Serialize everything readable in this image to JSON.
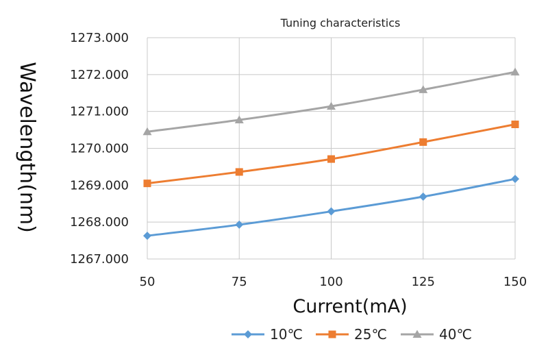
{
  "chart_data": {
    "type": "line",
    "title": "Tuning characteristics",
    "xlabel": "Current(mA)",
    "ylabel": "Wavelength(nm)",
    "x": [
      50,
      75,
      100,
      125,
      150
    ],
    "xticks": [
      "50",
      "75",
      "100",
      "125",
      "150"
    ],
    "xlim": [
      50,
      150
    ],
    "yticks": [
      "1267.000",
      "1268.000",
      "1269.000",
      "1270.000",
      "1271.000",
      "1272.000",
      "1273.000"
    ],
    "ylim": [
      1267,
      1273
    ],
    "grid": true,
    "legend_position": "bottom",
    "series": [
      {
        "name": "10℃",
        "color": "#5b9bd5",
        "marker": "diamond",
        "values": [
          1267.63,
          1267.93,
          1268.29,
          1268.69,
          1269.17
        ]
      },
      {
        "name": "25℃",
        "color": "#ed7d31",
        "marker": "square",
        "values": [
          1269.05,
          1269.36,
          1269.71,
          1270.17,
          1270.65
        ]
      },
      {
        "name": "40℃",
        "color": "#a5a5a5",
        "marker": "triangle",
        "values": [
          1270.45,
          1270.77,
          1271.14,
          1271.59,
          1272.07
        ]
      }
    ]
  }
}
